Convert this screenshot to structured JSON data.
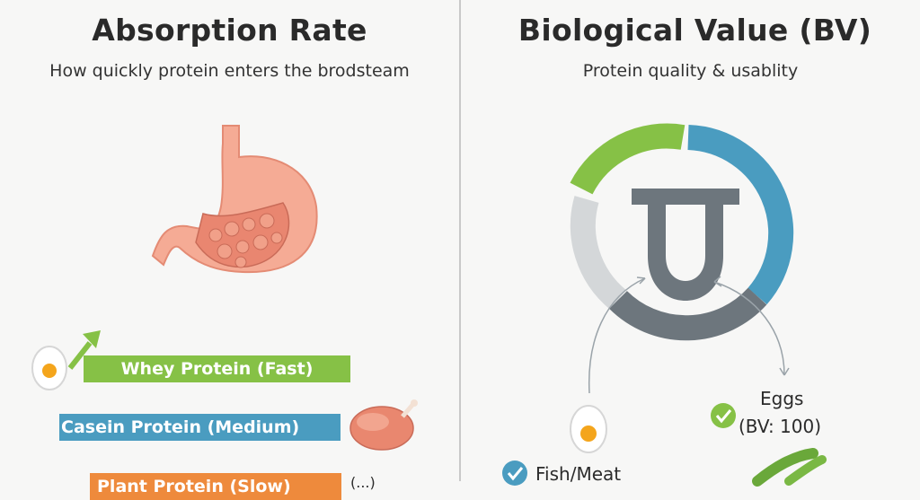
{
  "left": {
    "title": "Absorption Rate",
    "subtitle": "How quickly protein enters the brodsteam",
    "bars": [
      {
        "label": "Whey Protein (Fast)",
        "color": "#86c146"
      },
      {
        "label": "Casein Protein (Medium)",
        "color": "#4a9cc0"
      },
      {
        "label": "Plant Protein (Slow)",
        "color": "#ee8a3c"
      }
    ],
    "trailing_text": "(...)"
  },
  "right": {
    "title": "Biological Value (BV)",
    "subtitle": "Protein quality & usablity",
    "eggs_label": "Eggs",
    "eggs_value": "(BV: 100)",
    "fish_label": "Fish/Meat"
  },
  "colors": {
    "green": "#86c146",
    "blue": "#4a9cc0",
    "orange": "#ee8a3c",
    "gray_dark": "#6d767d",
    "gray_light": "#d4d7d9",
    "stomach": "#f2a58f"
  },
  "icons": [
    "stomach-icon",
    "egg-icon",
    "chicken-icon",
    "arrow-up-icon",
    "check-icon",
    "peas-icon",
    "u-magnet-icon"
  ]
}
